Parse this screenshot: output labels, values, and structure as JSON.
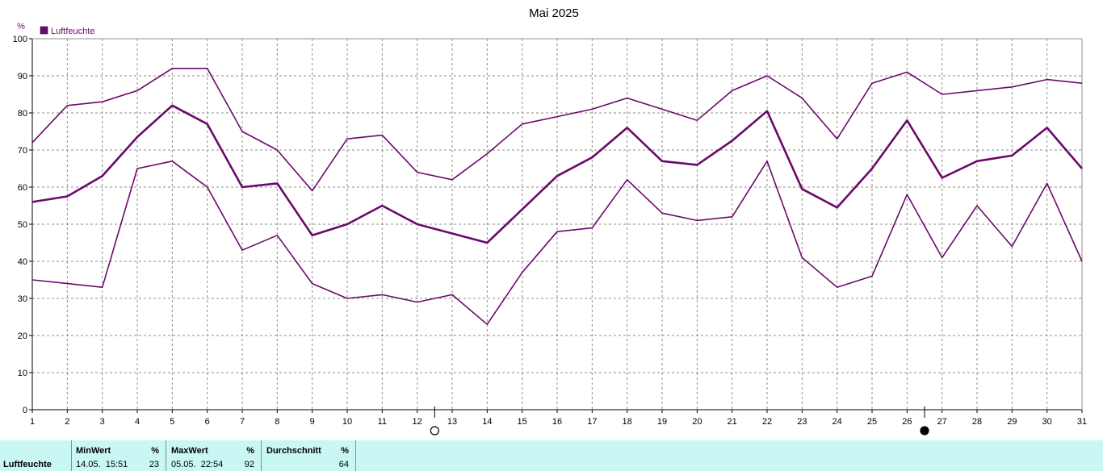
{
  "chart_data": {
    "type": "line",
    "title": "Mai 2025",
    "unit": "%",
    "legend": [
      "Luftfeuchte"
    ],
    "legend_position": "top-left",
    "x": [
      1,
      2,
      3,
      4,
      5,
      6,
      7,
      8,
      9,
      10,
      11,
      12,
      13,
      14,
      15,
      16,
      17,
      18,
      19,
      20,
      21,
      22,
      23,
      24,
      25,
      26,
      27,
      28,
      29,
      30,
      31
    ],
    "xlim": [
      1,
      31
    ],
    "ylim": [
      0,
      100
    ],
    "yticks": [
      0,
      10,
      20,
      30,
      40,
      50,
      60,
      70,
      80,
      90,
      100
    ],
    "grid": true,
    "series": [
      {
        "values": [
          72,
          82,
          83,
          86,
          92,
          92,
          75,
          70,
          59,
          73,
          74,
          64,
          62,
          69,
          77,
          79,
          81,
          84,
          81,
          78,
          86,
          90,
          84,
          73,
          88,
          91,
          85,
          86,
          87,
          89,
          88
        ]
      },
      {
        "values": [
          56,
          57.5,
          63,
          73.5,
          82,
          77,
          60,
          61,
          47,
          50,
          55,
          50,
          47.5,
          45,
          54,
          63,
          68,
          76,
          67,
          66,
          72.5,
          80.5,
          59.5,
          54.5,
          65,
          78,
          62.5,
          67,
          68.5,
          76,
          65
        ]
      },
      {
        "values": [
          35,
          34,
          33,
          65,
          67,
          60,
          43,
          47,
          34,
          30,
          31,
          29,
          31,
          23,
          37,
          48,
          49,
          62,
          53,
          51,
          52,
          67,
          41,
          33,
          36,
          58,
          41,
          55,
          44,
          61,
          40
        ]
      }
    ],
    "moon_phases": [
      {
        "day": 13,
        "phase": "full"
      },
      {
        "day": 27,
        "phase": "new"
      }
    ],
    "colors": {
      "line": "#6a0a6a",
      "grid": "#8c8c8c",
      "stats_bg": "#c9f7f3"
    }
  },
  "stats": {
    "row_label": "Luftfeuchte",
    "min": {
      "header": "MinWert",
      "unit": "%",
      "datetime": "14.05.  15:51",
      "value": "23"
    },
    "max": {
      "header": "MaxWert",
      "unit": "%",
      "datetime": "05.05.  22:54",
      "value": "92"
    },
    "avg": {
      "header": "Durchschnitt",
      "unit": "%",
      "value": "64"
    }
  }
}
